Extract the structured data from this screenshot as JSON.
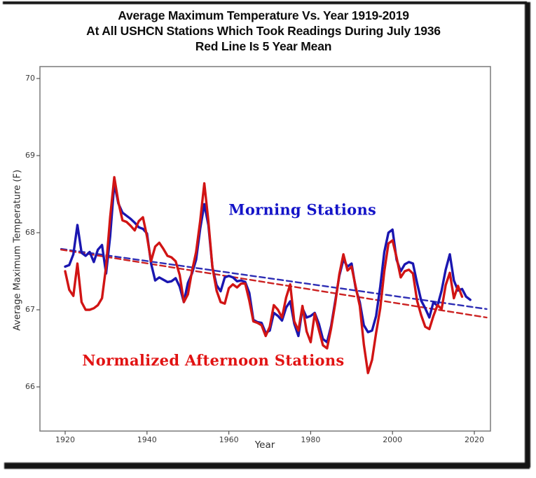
{
  "chart_data": {
    "type": "line",
    "title_lines": [
      "Average Maximum Temperature Vs. Year 1919-2019",
      "At All USHCN Stations Which Took Readings During July 1936",
      "Red Line Is 5 Year Mean"
    ],
    "xlabel": "Year",
    "ylabel": "Average Maximum Temperature (F)",
    "x_ticks": [
      1920,
      1940,
      1960,
      1980,
      2000,
      2020
    ],
    "y_ticks": [
      70,
      69,
      68,
      67,
      66
    ],
    "x_range": [
      1914,
      2024
    ],
    "y_range": [
      65.45,
      70.16
    ],
    "grid": false,
    "legend": "none",
    "frame_color": "#7a7a7a",
    "tick_color": "#555555",
    "annotations": [
      {
        "text": "Morning Stations",
        "color": "#1414c8",
        "x": 1978,
        "y": 68.3
      },
      {
        "text": "Normalized Afternoon Stations",
        "color": "#e11212",
        "x": 1956.2,
        "y": 66.35
      }
    ],
    "series": [
      {
        "name": "Morning Stations (blue solid, 5 year mean)",
        "color": "#1a16b0",
        "style": "solid",
        "width": 3.4,
        "start_year": 1920,
        "step": 1,
        "values": [
          67.56,
          67.58,
          67.72,
          68.1,
          67.74,
          67.7,
          67.75,
          67.62,
          67.78,
          67.84,
          67.47,
          67.95,
          68.64,
          68.38,
          68.26,
          68.22,
          68.18,
          68.13,
          68.07,
          68.05,
          67.99,
          67.6,
          67.38,
          67.42,
          67.39,
          67.36,
          67.37,
          67.41,
          67.3,
          67.1,
          67.35,
          67.47,
          67.65,
          68.05,
          68.37,
          68.1,
          67.55,
          67.32,
          67.24,
          67.42,
          67.44,
          67.42,
          67.37,
          67.38,
          67.36,
          67.22,
          66.87,
          66.84,
          66.83,
          66.7,
          66.73,
          66.96,
          66.92,
          66.86,
          67.03,
          67.11,
          66.82,
          66.66,
          67.02,
          66.9,
          66.92,
          66.96,
          66.82,
          66.62,
          66.58,
          66.79,
          67.11,
          67.44,
          67.65,
          67.56,
          67.6,
          67.28,
          67.1,
          66.8,
          66.71,
          66.73,
          66.92,
          67.3,
          67.75,
          68.0,
          68.04,
          67.65,
          67.5,
          67.59,
          67.62,
          67.6,
          67.35,
          67.12,
          67.02,
          66.9,
          67.1,
          67.05,
          67.25,
          67.52,
          67.72,
          67.38,
          67.25,
          67.27,
          67.17,
          67.13
        ]
      },
      {
        "name": "Normalized Afternoon Stations (red solid, 5 year mean)",
        "color": "#d11414",
        "style": "solid",
        "width": 3.4,
        "start_year": 1920,
        "step": 1,
        "values": [
          67.5,
          67.26,
          67.18,
          67.6,
          67.1,
          67.0,
          67.0,
          67.02,
          67.06,
          67.15,
          67.56,
          68.2,
          68.72,
          68.4,
          68.16,
          68.14,
          68.09,
          68.03,
          68.15,
          68.2,
          67.95,
          67.63,
          67.82,
          67.87,
          67.79,
          67.7,
          67.68,
          67.63,
          67.45,
          67.1,
          67.2,
          67.5,
          67.75,
          68.15,
          68.64,
          68.15,
          67.55,
          67.25,
          67.1,
          67.08,
          67.28,
          67.33,
          67.29,
          67.34,
          67.34,
          67.12,
          66.85,
          66.83,
          66.8,
          66.66,
          66.78,
          67.06,
          67.0,
          66.9,
          67.16,
          67.33,
          66.85,
          66.73,
          67.05,
          66.72,
          66.58,
          66.95,
          66.74,
          66.54,
          66.5,
          66.76,
          67.08,
          67.46,
          67.72,
          67.51,
          67.56,
          67.3,
          67.05,
          66.55,
          66.18,
          66.35,
          66.7,
          67.02,
          67.5,
          67.86,
          67.9,
          67.68,
          67.42,
          67.5,
          67.52,
          67.47,
          67.12,
          66.93,
          66.78,
          66.75,
          66.92,
          67.06,
          67.01,
          67.32,
          67.48,
          67.15,
          67.31,
          67.17
        ]
      },
      {
        "name": "Morning Stations linear trend (blue dashed)",
        "color": "#2e2eb5",
        "style": "dashed",
        "width": 2.4,
        "points": [
          [
            1919,
            67.79
          ],
          [
            2023,
            67.01
          ]
        ]
      },
      {
        "name": "Afternoon Stations linear trend (red dashed)",
        "color": "#cc2222",
        "style": "dashed",
        "width": 2.4,
        "points": [
          [
            1919,
            67.78
          ],
          [
            2023,
            66.9
          ]
        ]
      }
    ]
  }
}
